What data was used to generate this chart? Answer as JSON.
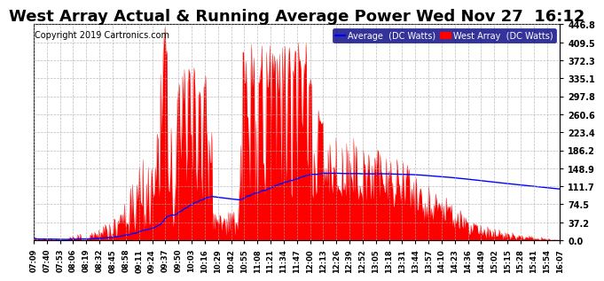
{
  "title": "West Array Actual & Running Average Power Wed Nov 27  16:12",
  "copyright": "Copyright 2019 Cartronics.com",
  "ylabel_right_ticks": [
    0.0,
    37.2,
    74.5,
    111.7,
    148.9,
    186.2,
    223.4,
    260.6,
    297.8,
    335.1,
    372.3,
    409.5,
    446.8
  ],
  "ymax": 446.8,
  "ymin": 0.0,
  "legend_labels": [
    "Average  (DC Watts)",
    "West Array  (DC Watts)"
  ],
  "legend_colors": [
    "#0000ff",
    "#ff0000"
  ],
  "bar_color": "#ff0000",
  "line_color": "#0000ff",
  "background_color": "#ffffff",
  "plot_bg_color": "#ffffff",
  "grid_color": "#aaaaaa",
  "title_fontsize": 13,
  "copyright_fontsize": 7,
  "x_tick_labels": [
    "07:09",
    "07:40",
    "07:53",
    "08:06",
    "08:19",
    "08:32",
    "08:45",
    "08:58",
    "09:11",
    "09:24",
    "09:37",
    "09:50",
    "10:03",
    "10:16",
    "10:29",
    "10:42",
    "10:55",
    "11:08",
    "11:21",
    "11:34",
    "11:47",
    "12:00",
    "12:13",
    "12:26",
    "12:39",
    "12:52",
    "13:05",
    "13:18",
    "13:31",
    "13:44",
    "13:57",
    "14:10",
    "14:23",
    "14:36",
    "14:49",
    "15:02",
    "15:15",
    "15:28",
    "15:41",
    "15:54",
    "16:07"
  ]
}
